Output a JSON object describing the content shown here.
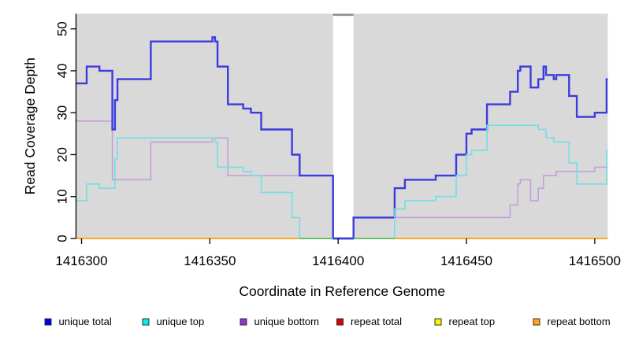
{
  "chart_data": {
    "type": "line",
    "subtype": "step",
    "xlabel": "Coordinate in Reference Genome",
    "ylabel": "Read Coverage Depth",
    "x_ticks": [
      {
        "value": 1416300,
        "label": "1416300"
      },
      {
        "value": 1416350,
        "label": "1416350"
      },
      {
        "value": 1416400,
        "label": "1416400"
      },
      {
        "value": 1416450,
        "label": "1416450"
      },
      {
        "value": 1416500,
        "label": "1416500"
      }
    ],
    "y_ticks": [
      {
        "value": 0,
        "label": "0"
      },
      {
        "value": 10,
        "label": "10"
      },
      {
        "value": 20,
        "label": "20"
      },
      {
        "value": 30,
        "label": "30"
      },
      {
        "value": 40,
        "label": "40"
      },
      {
        "value": 50,
        "label": "50"
      }
    ],
    "x_range": [
      1416298,
      1416505.1
    ],
    "y_range": [
      0,
      53.6
    ],
    "panel_bg": "#d9d9d9",
    "grid": false,
    "gap_region": {
      "x_from": 1416398,
      "x_to": 1416406,
      "fill": "#ffffff",
      "cap_color": "#8c8c8c"
    },
    "zero_line": {
      "color": "#FFA519",
      "blend_segments": [
        {
          "x_from": 1416385,
          "x_to": 1416398,
          "color": "#5cbe68"
        },
        {
          "x_from": 1416406,
          "x_to": 1416422,
          "color": "#5cbe68"
        }
      ]
    },
    "series": [
      {
        "name": "unique total",
        "legend_color": "#0000EE",
        "stroke": "#3B3BE0",
        "width": 2.4,
        "points": [
          [
            1416298,
            37
          ],
          [
            1416302,
            41
          ],
          [
            1416307,
            40
          ],
          [
            1416312,
            26
          ],
          [
            1416313,
            33
          ],
          [
            1416314,
            38
          ],
          [
            1416327,
            47
          ],
          [
            1416351,
            48
          ],
          [
            1416352,
            47
          ],
          [
            1416353,
            41
          ],
          [
            1416357,
            32
          ],
          [
            1416363,
            31
          ],
          [
            1416366,
            30
          ],
          [
            1416370,
            26
          ],
          [
            1416382,
            20
          ],
          [
            1416385,
            15
          ],
          [
            1416398,
            0
          ],
          [
            1416406,
            5
          ],
          [
            1416422,
            12
          ],
          [
            1416426,
            14
          ],
          [
            1416438,
            15
          ],
          [
            1416446,
            20
          ],
          [
            1416450,
            25
          ],
          [
            1416452,
            26
          ],
          [
            1416458,
            32
          ],
          [
            1416467,
            35
          ],
          [
            1416470,
            40
          ],
          [
            1416471,
            41
          ],
          [
            1416475,
            36
          ],
          [
            1416478,
            38
          ],
          [
            1416480,
            41
          ],
          [
            1416481,
            39
          ],
          [
            1416484,
            38
          ],
          [
            1416485,
            39
          ],
          [
            1416490,
            34
          ],
          [
            1416493,
            29
          ],
          [
            1416500,
            30
          ],
          [
            1416504.6,
            38
          ]
        ]
      },
      {
        "name": "unique top",
        "legend_color": "#00EEEE",
        "stroke": "#6FE0E6",
        "width": 1.6,
        "points": [
          [
            1416298,
            9
          ],
          [
            1416302,
            13
          ],
          [
            1416307,
            12
          ],
          [
            1416313,
            19
          ],
          [
            1416314,
            24
          ],
          [
            1416352,
            23
          ],
          [
            1416353,
            17
          ],
          [
            1416363,
            16
          ],
          [
            1416366,
            15
          ],
          [
            1416370,
            11
          ],
          [
            1416382,
            5
          ],
          [
            1416385,
            0
          ],
          [
            1416422,
            7
          ],
          [
            1416426,
            9
          ],
          [
            1416438,
            10
          ],
          [
            1416446,
            15
          ],
          [
            1416450,
            20
          ],
          [
            1416452,
            21
          ],
          [
            1416458,
            27
          ],
          [
            1416478,
            26
          ],
          [
            1416481,
            24
          ],
          [
            1416484,
            23
          ],
          [
            1416490,
            18
          ],
          [
            1416493,
            13
          ],
          [
            1416504.6,
            21
          ]
        ]
      },
      {
        "name": "unique bottom",
        "legend_color": "#9932CC",
        "stroke": "#C39BDB",
        "width": 1.5,
        "points": [
          [
            1416298,
            28
          ],
          [
            1416312,
            14
          ],
          [
            1416327,
            23
          ],
          [
            1416351,
            24
          ],
          [
            1416357,
            15
          ],
          [
            1416398,
            0
          ],
          [
            1416406,
            5
          ],
          [
            1416467,
            8
          ],
          [
            1416470,
            13
          ],
          [
            1416471,
            14
          ],
          [
            1416475,
            9
          ],
          [
            1416478,
            12
          ],
          [
            1416480,
            15
          ],
          [
            1416485,
            16
          ],
          [
            1416500,
            17
          ]
        ]
      },
      {
        "name": "repeat total",
        "legend_color": "#E00000",
        "stroke": "#E00000",
        "width": 1.6,
        "points": [
          [
            1416298,
            0
          ]
        ]
      },
      {
        "name": "repeat top",
        "legend_color": "#F5F500",
        "stroke": "#F5F500",
        "width": 1.6,
        "points": [
          [
            1416298,
            0
          ]
        ]
      },
      {
        "name": "repeat bottom",
        "legend_color": "#FFA519",
        "stroke": "#FFA519",
        "width": 1.7,
        "points": [
          [
            1416298,
            0
          ]
        ]
      }
    ]
  },
  "legend": {
    "items": [
      {
        "label": "unique total",
        "color": "#0000EE"
      },
      {
        "label": "unique top",
        "color": "#00EEEE"
      },
      {
        "label": "unique bottom",
        "color": "#9932CC"
      },
      {
        "label": "repeat total",
        "color": "#E00000"
      },
      {
        "label": "repeat top",
        "color": "#F5F500"
      },
      {
        "label": "repeat bottom",
        "color": "#FFA519"
      }
    ]
  }
}
